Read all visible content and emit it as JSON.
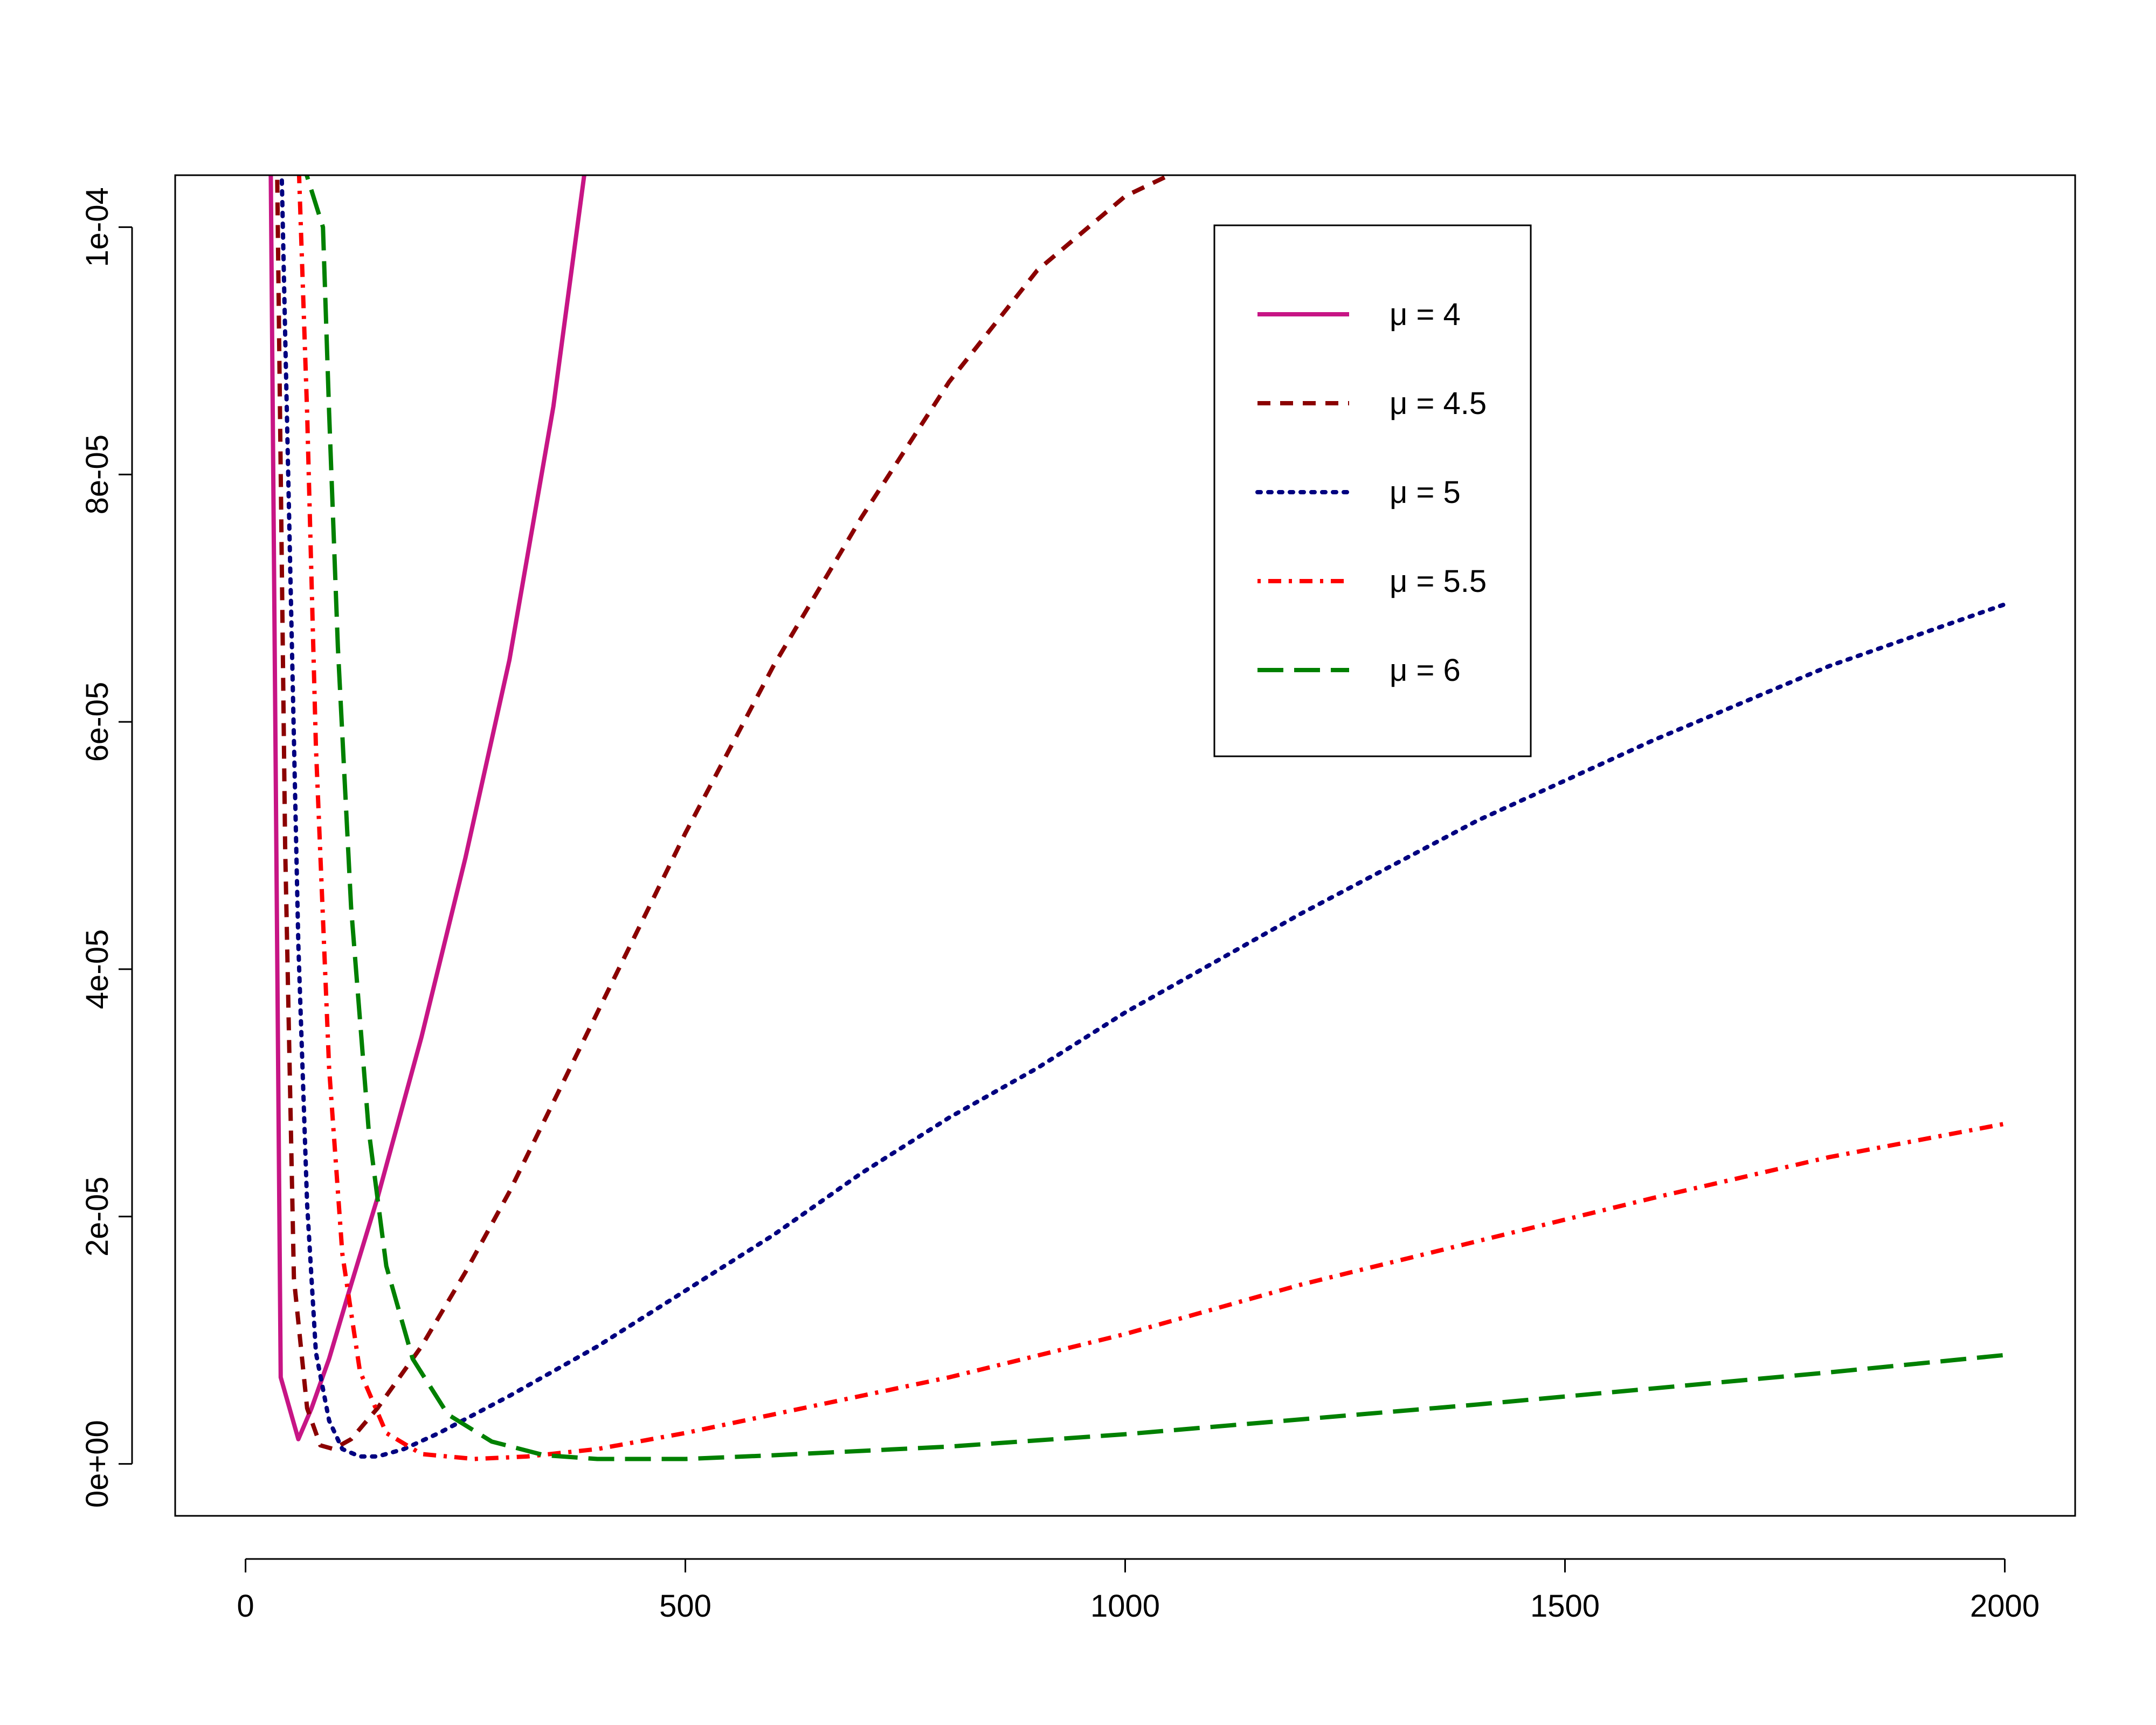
{
  "chart_data": {
    "type": "line",
    "title": "",
    "xlabel": "",
    "ylabel": "",
    "xlim": [
      -80,
      2080
    ],
    "ylim": [
      -4.2e-06,
      0.0001042
    ],
    "x_ticks": [
      0,
      500,
      1000,
      1500,
      2000
    ],
    "x_tick_labels": [
      "0",
      "500",
      "1000",
      "1500",
      "2000"
    ],
    "y_ticks": [
      0,
      2e-05,
      4e-05,
      6e-05,
      8e-05,
      0.0001
    ],
    "y_tick_labels": [
      "0e+00",
      "2e-05",
      "4e-05",
      "6e-05",
      "8e-05",
      "1e-04"
    ],
    "grid": false,
    "legend_position": "top-right",
    "series": [
      {
        "name": "μ = 4",
        "color": "#c71585",
        "dash": "solid",
        "x": [
          0,
          28,
          40,
          60,
          75,
          95,
          120,
          150,
          200,
          250,
          300,
          350,
          385
        ],
        "y": [
          0.00012,
          0.00011,
          7e-06,
          2e-06,
          4.5e-06,
          8.5e-06,
          1.45e-05,
          2.15e-05,
          3.45e-05,
          4.9e-05,
          6.5e-05,
          8.55e-05,
          0.0001042
        ]
      },
      {
        "name": "μ = 4.5",
        "color": "#8b0000",
        "dash": "dashed",
        "x": [
          0,
          35,
          45,
          55,
          70,
          85,
          100,
          120,
          150,
          200,
          250,
          300,
          400,
          500,
          600,
          700,
          800,
          900,
          1000,
          1050
        ],
        "y": [
          0.00012,
          0.00011,
          5e-05,
          1.5e-05,
          4.5e-06,
          1.5e-06,
          1.2e-06,
          2e-06,
          4.5e-06,
          9.5e-06,
          1.55e-05,
          2.2e-05,
          3.65e-05,
          5.1e-05,
          6.45e-05,
          7.65e-05,
          8.75e-05,
          9.65e-05,
          0.0001025,
          0.0001042
        ]
      },
      {
        "name": "μ = 5",
        "color": "#000080",
        "dash": "dotted",
        "x": [
          0,
          40,
          50,
          60,
          70,
          80,
          95,
          110,
          130,
          150,
          180,
          220,
          300,
          400,
          500,
          600,
          700,
          800,
          900,
          1000,
          1200,
          1400,
          1600,
          1800,
          2000
        ],
        "y": [
          0.00012,
          0.000108,
          7.5e-05,
          4.2e-05,
          2.1e-05,
          9e-06,
          3.5e-06,
          1.2e-06,
          6e-07,
          6e-07,
          1.2e-06,
          2.5e-06,
          5.5e-06,
          9.5e-06,
          1.4e-05,
          1.85e-05,
          2.35e-05,
          2.8e-05,
          3.2e-05,
          3.65e-05,
          4.45e-05,
          5.2e-05,
          5.85e-05,
          6.45e-05,
          6.95e-05
        ]
      },
      {
        "name": "μ = 5.5",
        "color": "#ff0000",
        "dash": "dashdot",
        "x": [
          0,
          60,
          70,
          80,
          95,
          110,
          130,
          160,
          200,
          260,
          320,
          400,
          500,
          600,
          800,
          1000,
          1200,
          1400,
          1600,
          1800,
          2000
        ],
        "y": [
          0.00012,
          0.000106,
          8.5e-05,
          5.8e-05,
          3.2e-05,
          1.7e-05,
          7.5e-06,
          2.5e-06,
          8e-07,
          4e-07,
          6e-07,
          1.2e-06,
          2.5e-06,
          4e-06,
          7e-06,
          1.05e-05,
          1.45e-05,
          1.8e-05,
          2.15e-05,
          2.48e-05,
          2.75e-05
        ]
      },
      {
        "name": "μ = 6",
        "color": "#008000",
        "dash": "longdash",
        "x": [
          0,
          88,
          95,
          105,
          120,
          140,
          160,
          190,
          230,
          280,
          340,
          400,
          500,
          600,
          800,
          1000,
          1200,
          1400,
          1600,
          1800,
          2000
        ],
        "y": [
          0.00012,
          0.0001,
          8.5e-05,
          6.6e-05,
          4.5e-05,
          2.7e-05,
          1.6e-05,
          8.5e-06,
          4e-06,
          1.8e-06,
          7e-07,
          4e-07,
          4e-07,
          7e-07,
          1.4e-06,
          2.4e-06,
          3.6e-06,
          4.8e-06,
          6.1e-06,
          7.4e-06,
          8.8e-06
        ]
      }
    ]
  }
}
